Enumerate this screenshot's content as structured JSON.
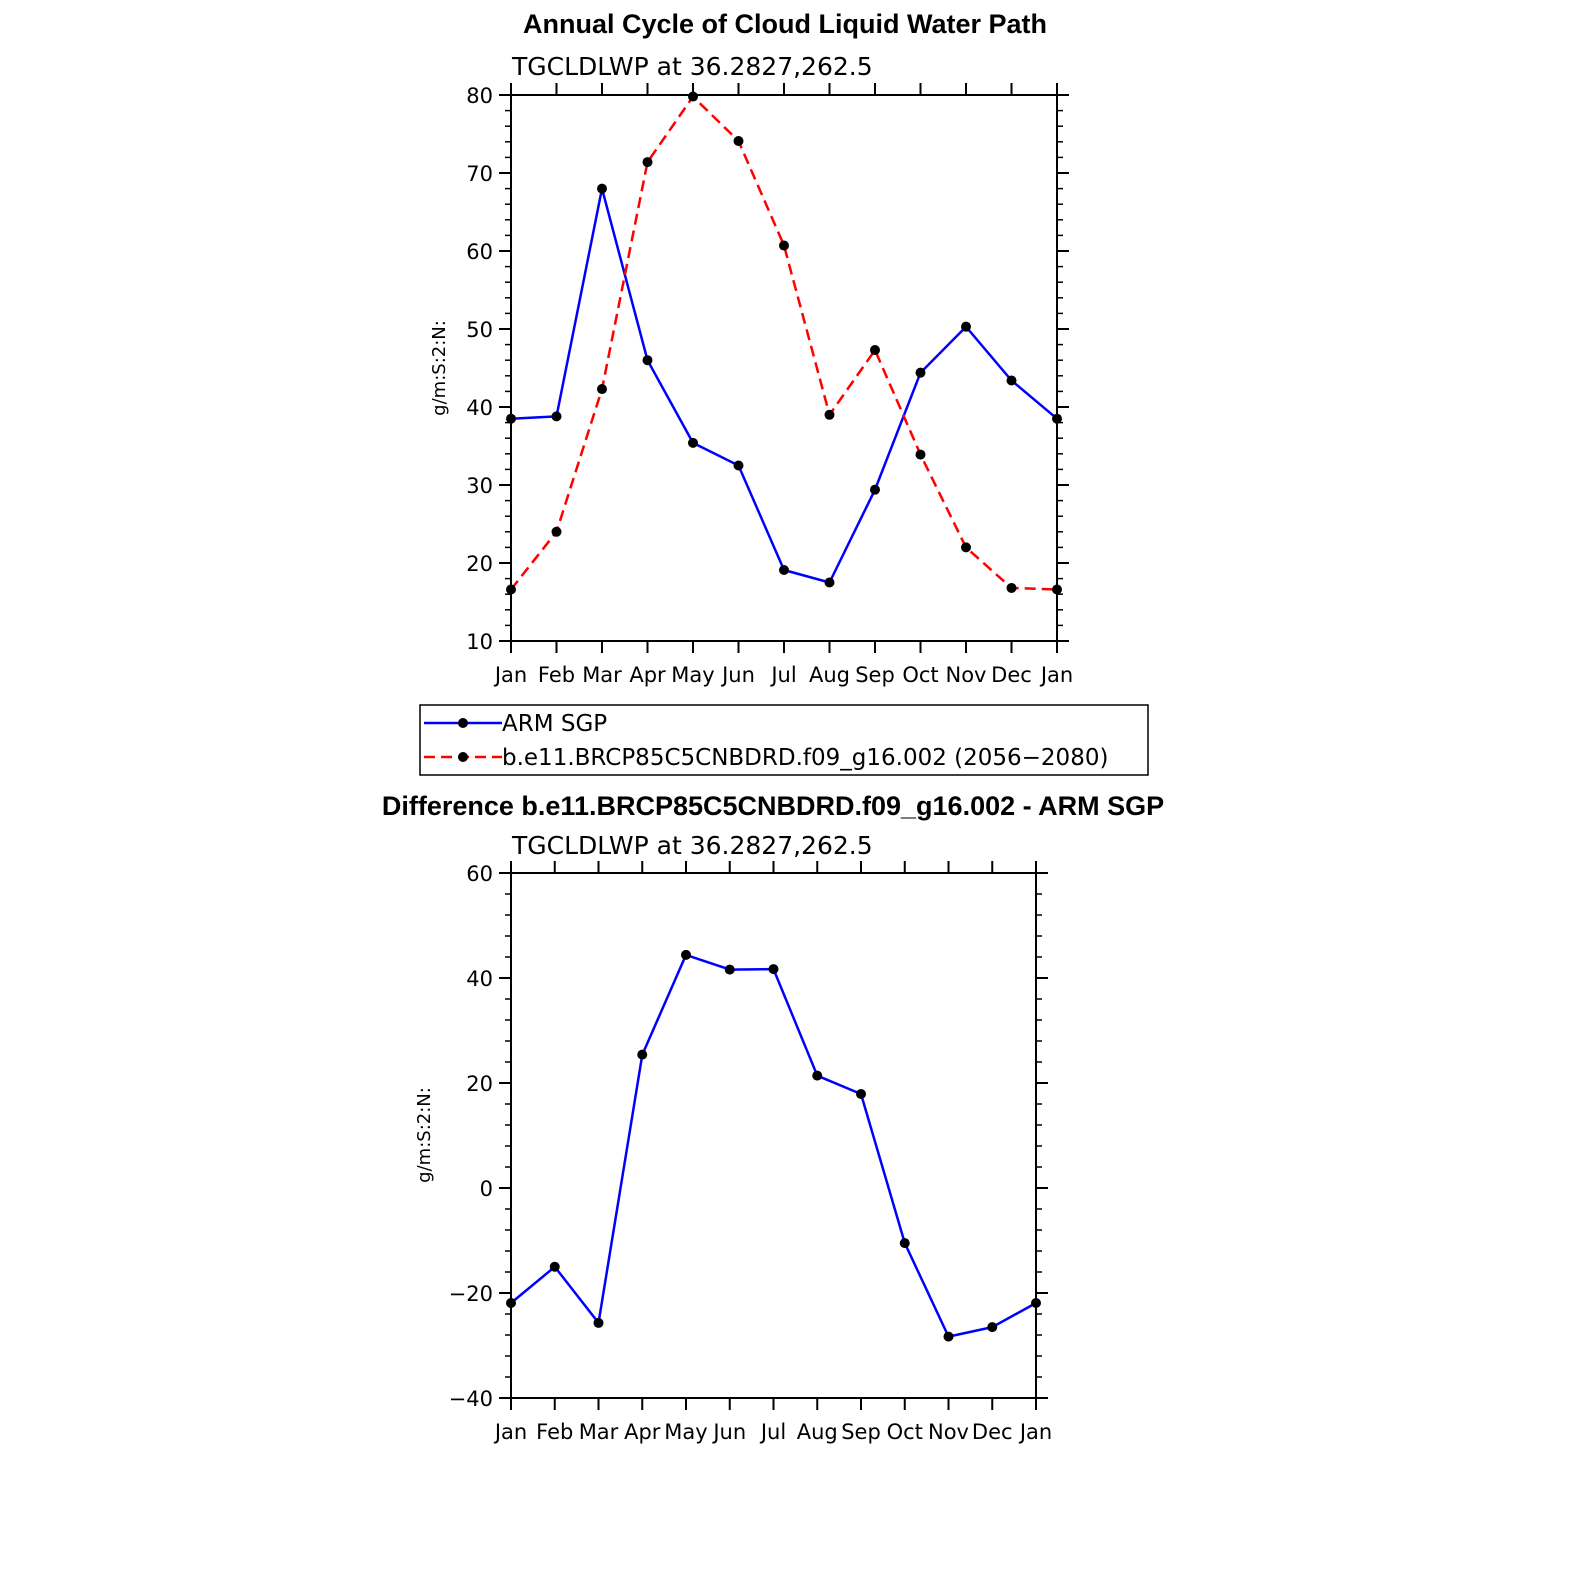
{
  "chart_data": [
    {
      "type": "line",
      "title": "Annual Cycle of Cloud Liquid Water Path",
      "subtitle": "TGCLDLWP at 36.2827,262.5",
      "xlabel": "",
      "ylabel": "g/m:S:2:N:",
      "categories": [
        "Jan",
        "Feb",
        "Mar",
        "Apr",
        "May",
        "Jun",
        "Jul",
        "Aug",
        "Sep",
        "Oct",
        "Nov",
        "Dec",
        "Jan"
      ],
      "ylim": [
        10,
        80
      ],
      "yticks": [
        "10",
        "20",
        "30",
        "40",
        "50",
        "60",
        "70",
        "80"
      ],
      "grid": false,
      "legend_position": "below",
      "series": [
        {
          "name": "ARM SGP",
          "color": "#0000ff",
          "dash": "solid",
          "marker": "dot",
          "values": [
            38.5,
            38.8,
            68.0,
            46.0,
            35.4,
            32.5,
            19.1,
            17.5,
            29.4,
            44.4,
            50.3,
            43.4,
            38.5
          ]
        },
        {
          "name": "b.e11.BRCP85C5CNBDRD.f09_g16.002 (2056−2080)",
          "color": "#ff0000",
          "dash": "dashed",
          "marker": "dot",
          "values": [
            16.6,
            24.0,
            42.3,
            71.4,
            79.8,
            74.1,
            60.7,
            39.0,
            47.3,
            33.9,
            22.0,
            16.8,
            16.6
          ]
        }
      ]
    },
    {
      "type": "line",
      "title": "Difference b.e11.BRCP85C5CNBDRD.f09_g16.002 - ARM SGP",
      "subtitle": "TGCLDLWP at 36.2827,262.5",
      "xlabel": "",
      "ylabel": "g/m:S:2:N:",
      "categories": [
        "Jan",
        "Feb",
        "Mar",
        "Apr",
        "May",
        "Jun",
        "Jul",
        "Aug",
        "Sep",
        "Oct",
        "Nov",
        "Dec",
        "Jan"
      ],
      "ylim": [
        -40,
        60
      ],
      "yticks": [
        "−40",
        "−20",
        "0",
        "20",
        "40",
        "60"
      ],
      "grid": false,
      "series": [
        {
          "color": "#0000ff",
          "dash": "solid",
          "marker": "dot",
          "values": [
            -21.9,
            -15.0,
            -25.7,
            25.4,
            44.4,
            41.6,
            41.7,
            21.4,
            17.9,
            -10.5,
            -28.3,
            -26.5,
            -21.9
          ]
        }
      ]
    }
  ]
}
